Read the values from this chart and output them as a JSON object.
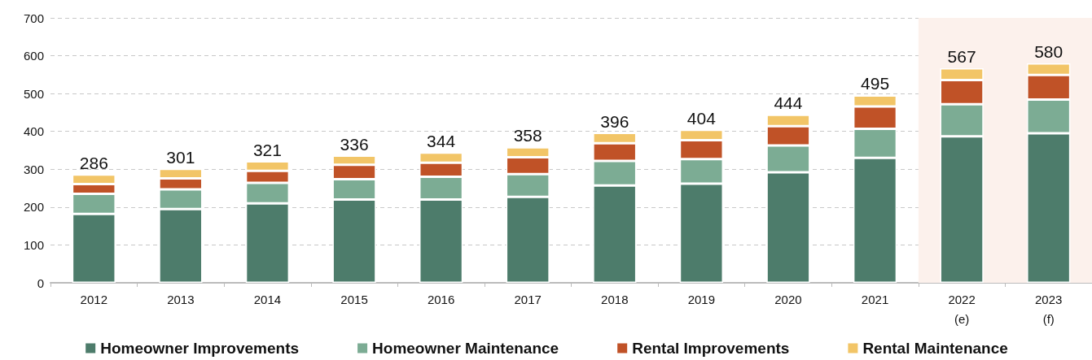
{
  "chart_data": {
    "type": "bar",
    "stacked": true,
    "categories": [
      "2012",
      "2013",
      "2014",
      "2015",
      "2016",
      "2017",
      "2018",
      "2019",
      "2020",
      "2021",
      "2022\n(e)",
      "2023\n(f)"
    ],
    "series": [
      {
        "name": "Homeowner Improvements",
        "color": "#4d7c6b",
        "values": [
          182,
          195,
          210,
          220,
          220,
          227,
          257,
          262,
          292,
          330,
          387,
          395
        ]
      },
      {
        "name": "Homeowner Maintenance",
        "color": "#7cac94",
        "values": [
          53,
          52,
          54,
          54,
          60,
          60,
          65,
          65,
          71,
          77,
          85,
          89
        ]
      },
      {
        "name": "Rental Improvements",
        "color": "#c05227",
        "values": [
          26,
          29,
          32,
          38,
          37,
          45,
          47,
          50,
          51,
          59,
          64,
          65
        ]
      },
      {
        "name": "Rental Maintenance",
        "color": "#f2c567",
        "values": [
          25,
          25,
          25,
          24,
          27,
          26,
          27,
          27,
          30,
          29,
          31,
          31
        ]
      }
    ],
    "totals": [
      "286",
      "301",
      "321",
      "336",
      "344",
      "358",
      "396",
      "404",
      "444",
      "495",
      "567",
      "580"
    ],
    "ylim": [
      0,
      700
    ],
    "yticks": [
      0,
      100,
      200,
      300,
      400,
      500,
      600,
      700
    ],
    "bands": [
      {
        "axis": "x",
        "from": "2022\n(e)",
        "to": "2023\n(f)",
        "color": "#fcf1ec"
      }
    ],
    "grid": "y",
    "legend": "bottom"
  }
}
